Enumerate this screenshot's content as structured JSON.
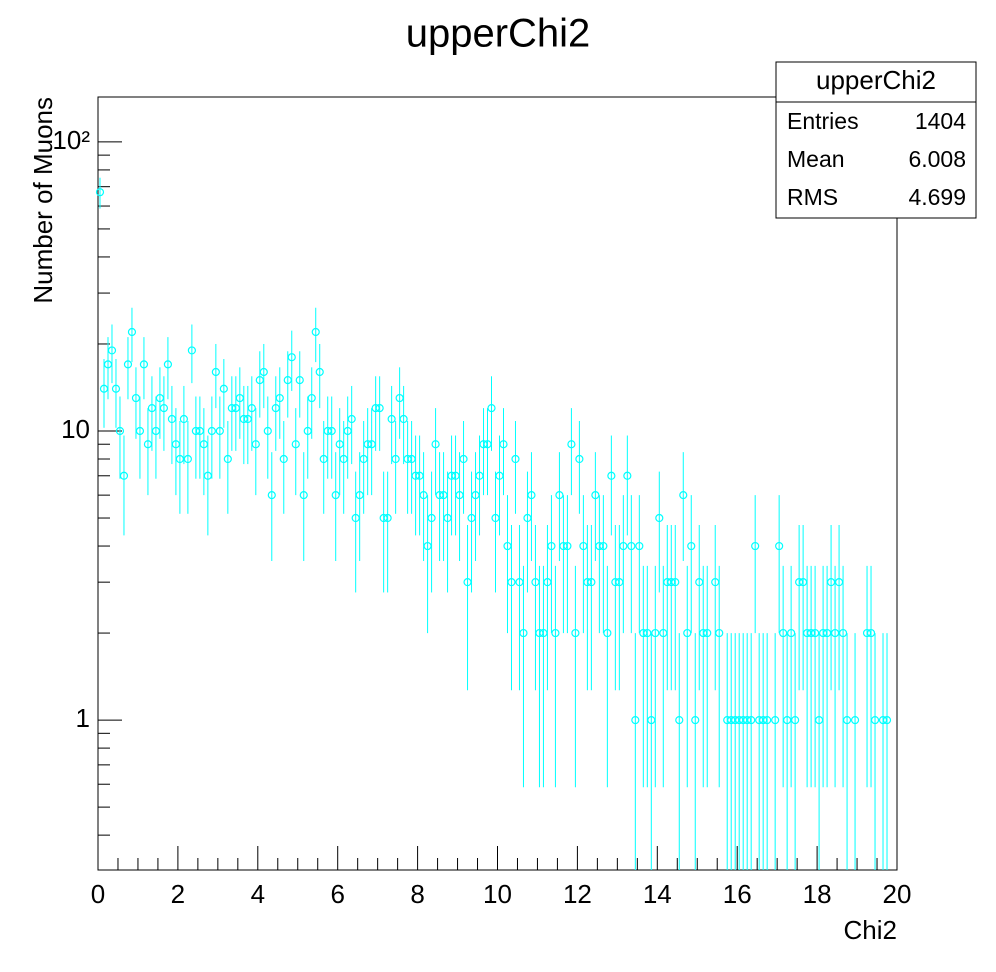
{
  "chart_data": {
    "type": "histogram",
    "title": "upperChi2",
    "x_label": "Chi2",
    "y_label": "Number of Muons",
    "color": "#00ffff",
    "log_y": true,
    "bins": [
      0,
      0.1,
      0.2,
      0.3,
      0.4,
      0.5,
      0.6,
      0.7,
      0.8,
      0.9,
      1,
      1.1,
      1.2,
      1.3,
      1.4,
      1.5,
      1.6,
      1.7,
      1.8,
      1.9,
      2,
      2.1,
      2.2,
      2.3,
      2.4,
      2.5,
      2.6,
      2.7,
      2.8,
      2.9,
      3,
      3.1,
      3.2,
      3.3,
      3.4,
      3.5,
      3.6,
      3.7,
      3.8,
      3.9,
      4,
      4.1,
      4.2,
      4.3,
      4.4,
      4.5,
      4.6,
      4.7,
      4.8,
      4.9,
      5,
      5.1,
      5.2,
      5.3,
      5.4,
      5.5,
      5.6,
      5.7,
      5.8,
      5.9,
      6,
      6.1,
      6.2,
      6.3,
      6.4,
      6.5,
      6.6,
      6.7,
      6.8,
      6.9,
      7,
      7.1,
      7.2,
      7.3,
      7.4,
      7.5,
      7.6,
      7.7,
      7.8,
      7.9,
      8,
      8.1,
      8.2,
      8.3,
      8.4,
      8.5,
      8.6,
      8.7,
      8.8,
      8.9,
      9,
      9.1,
      9.2,
      9.3,
      9.4,
      9.5,
      9.6,
      9.7,
      9.8,
      9.9,
      10,
      10.1,
      10.2,
      10.3,
      10.4,
      10.5,
      10.6,
      10.7,
      10.8,
      10.9,
      11,
      11.1,
      11.2,
      11.3,
      11.4,
      11.5,
      11.6,
      11.7,
      11.8,
      11.9,
      12,
      12.1,
      12.2,
      12.3,
      12.4,
      12.5,
      12.6,
      12.7,
      12.8,
      12.9,
      13,
      13.1,
      13.2,
      13.3,
      13.4,
      13.5,
      13.6,
      13.7,
      13.8,
      13.9,
      14,
      14.1,
      14.2,
      14.3,
      14.4,
      14.5,
      14.6,
      14.7,
      14.8,
      14.9,
      15,
      15.1,
      15.2,
      15.3,
      15.4,
      15.5,
      15.6,
      15.7,
      15.8,
      15.9,
      16,
      16.1,
      16.2,
      16.3,
      16.4,
      16.5,
      16.6,
      16.7,
      16.8,
      16.9,
      17,
      17.1,
      17.2,
      17.3,
      17.4,
      17.5,
      17.6,
      17.7,
      17.8,
      17.9,
      18,
      18.1,
      18.2,
      18.3,
      18.4,
      18.5,
      18.6,
      18.7,
      18.8,
      18.9,
      19,
      19.1,
      19.2,
      19.3,
      19.4,
      19.5,
      19.6,
      19.7,
      19.8,
      19.9,
      20
    ],
    "values": [
      67,
      14,
      17,
      19,
      14,
      10,
      7,
      17,
      22,
      13,
      10,
      17,
      9,
      12,
      10,
      13,
      12,
      17,
      11,
      9,
      8,
      11,
      8,
      19,
      10,
      10,
      9,
      7,
      10,
      16,
      10,
      14,
      8,
      12,
      12,
      13,
      11,
      11,
      12,
      9,
      15,
      16,
      10,
      6,
      12,
      13,
      8,
      15,
      18,
      9,
      15,
      6,
      10,
      13,
      22,
      16,
      8,
      10,
      10,
      6,
      9,
      8,
      10,
      11,
      5,
      6,
      8,
      9,
      9,
      12,
      12,
      5,
      5,
      11,
      8,
      13,
      11,
      8,
      8,
      7,
      7,
      6,
      4,
      5,
      9,
      6,
      6,
      5,
      7,
      7,
      6,
      8,
      3,
      5,
      6,
      7,
      9,
      9,
      12,
      5,
      7,
      9,
      4,
      3,
      8,
      3,
      2,
      5,
      6,
      3,
      2,
      2,
      3,
      4,
      2,
      6,
      4,
      4,
      9,
      2,
      8,
      4,
      3,
      3,
      6,
      4,
      4,
      2,
      7,
      3,
      3,
      4,
      7,
      4,
      1,
      4,
      2,
      2,
      1,
      2,
      5,
      2,
      3,
      3,
      3,
      1,
      6,
      2,
      4,
      1,
      3,
      2,
      2,
      null,
      3,
      2,
      null,
      1,
      1,
      1,
      1,
      1,
      1,
      1,
      4,
      1,
      1,
      1,
      null,
      1,
      4,
      2,
      1,
      2,
      1,
      3,
      3,
      2,
      2,
      2,
      1,
      2,
      2,
      3,
      2,
      3,
      2,
      1,
      null,
      1,
      null,
      null,
      2,
      2,
      1,
      null,
      1,
      1,
      null,
      null
    ],
    "xlim": [
      0,
      20
    ],
    "xticks": [
      0,
      2,
      4,
      6,
      8,
      10,
      12,
      14,
      16,
      18,
      20
    ],
    "xminorticks": [
      0.5,
      1,
      1.5,
      2.5,
      3,
      3.5,
      4.5,
      5,
      5.5,
      6.5,
      7,
      7.5,
      8.5,
      9,
      9.5,
      10.5,
      11,
      11.5,
      12.5,
      13,
      13.5,
      14.5,
      15,
      15.5,
      16.5,
      17,
      17.5,
      18.5,
      19,
      19.5
    ],
    "ylim": [
      0.303,
      143
    ],
    "yticks": [
      1,
      10,
      {
        "value": 100,
        "label": "10²"
      }
    ],
    "yminorticks": [
      0.4,
      0.5,
      0.6,
      0.7,
      0.8,
      0.9,
      2,
      3,
      4,
      5,
      6,
      7,
      8,
      9,
      20,
      30,
      40,
      50,
      60,
      70,
      80,
      90
    ],
    "stats": {
      "title": "upperChi2",
      "rows": [
        {
          "label": "Entries",
          "value": 1404
        },
        {
          "label": "Mean",
          "value": 6.008
        },
        {
          "label": "RMS",
          "value": 4.699
        }
      ]
    }
  }
}
